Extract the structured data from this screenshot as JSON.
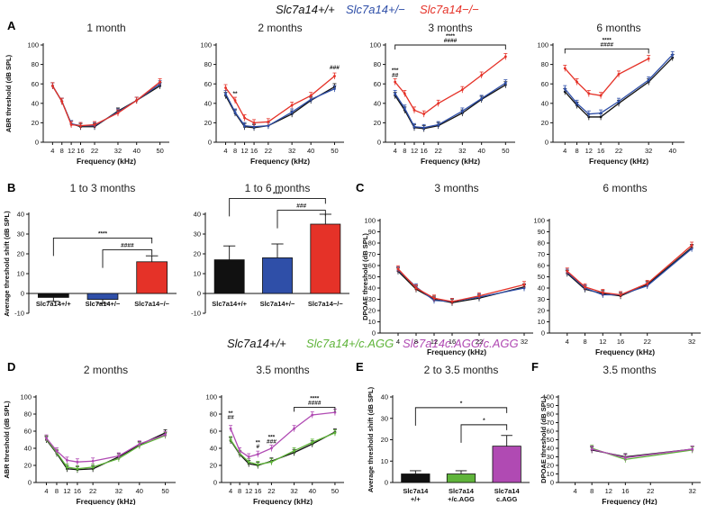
{
  "colors": {
    "black": "#111111",
    "blue": "#2f4fa8",
    "red": "#e53228",
    "green": "#5fb43a",
    "purple": "#b04ab3",
    "grey": "#444444"
  },
  "legend_top": [
    {
      "label": "Slc7a14+/+",
      "color": "black"
    },
    {
      "label": "Slc7a14+/−",
      "color": "blue"
    },
    {
      "label": "Slc7a14−/−",
      "color": "red"
    }
  ],
  "legend_mid": [
    {
      "label": "Slc7a14+/+",
      "color": "black"
    },
    {
      "label": "Slc7a14+/c.AGG",
      "color": "green"
    },
    {
      "label": "Slc7a14c.AGG/c.AGG",
      "color": "purple"
    }
  ],
  "panel_labels": [
    "A",
    "B",
    "C",
    "D",
    "E",
    "F"
  ],
  "chart_data": [
    {
      "id": "A1",
      "type": "line",
      "panel": "A",
      "title": "1 month",
      "xlabel": "Frequency (kHz)",
      "ylabel": "ABR threshold (dB SPL)",
      "xlim": [
        0,
        54
      ],
      "ylim": [
        0,
        100
      ],
      "xticks": [
        4,
        8,
        12,
        16,
        22,
        32,
        40,
        50
      ],
      "yticks": [
        0,
        20,
        40,
        60,
        80,
        100
      ],
      "x": [
        4,
        8,
        12,
        16,
        22,
        32,
        40,
        50
      ],
      "series": [
        {
          "name": "Slc7a14+/+",
          "color": "black",
          "values": [
            58,
            42,
            19,
            16,
            16,
            32,
            43,
            58
          ]
        },
        {
          "name": "Slc7a14+/−",
          "color": "blue",
          "values": [
            58,
            42,
            19,
            17,
            17,
            31,
            43,
            60
          ]
        },
        {
          "name": "Slc7a14−/−",
          "color": "red",
          "values": [
            58,
            42,
            18,
            17,
            18,
            30,
            43,
            62
          ]
        }
      ],
      "annotations": []
    },
    {
      "id": "A2",
      "type": "line",
      "panel": "A",
      "title": "2 months",
      "xlabel": "Frequency (kHz)",
      "ylabel": "",
      "xlim": [
        0,
        54
      ],
      "ylim": [
        0,
        100
      ],
      "xticks": [
        4,
        8,
        12,
        16,
        22,
        32,
        40,
        50
      ],
      "yticks": [
        0,
        20,
        40,
        60,
        80,
        100
      ],
      "x": [
        4,
        8,
        12,
        16,
        22,
        32,
        40,
        50
      ],
      "series": [
        {
          "name": "Slc7a14+/+",
          "color": "black",
          "values": [
            48,
            30,
            16,
            15,
            17,
            29,
            43,
            57
          ]
        },
        {
          "name": "Slc7a14+/−",
          "color": "blue",
          "values": [
            50,
            31,
            17,
            16,
            17,
            31,
            44,
            55
          ]
        },
        {
          "name": "Slc7a14−/−",
          "color": "red",
          "values": [
            56,
            43,
            25,
            20,
            21,
            38,
            48,
            68
          ]
        }
      ],
      "annotations": [
        {
          "text": "**",
          "x": 8,
          "y": 48
        },
        {
          "text": "###",
          "x": 50,
          "y": 75
        }
      ]
    },
    {
      "id": "A3",
      "type": "line",
      "panel": "A",
      "title": "3 months",
      "xlabel": "Frequency (kHz)",
      "ylabel": "",
      "xlim": [
        0,
        54
      ],
      "ylim": [
        0,
        100
      ],
      "xticks": [
        4,
        8,
        12,
        16,
        22,
        32,
        40,
        50
      ],
      "yticks": [
        0,
        20,
        40,
        60,
        80,
        100
      ],
      "x": [
        4,
        8,
        12,
        16,
        22,
        32,
        40,
        50
      ],
      "series": [
        {
          "name": "Slc7a14+/+",
          "color": "black",
          "values": [
            48,
            33,
            15,
            14,
            17,
            30,
            44,
            59
          ]
        },
        {
          "name": "Slc7a14+/−",
          "color": "blue",
          "values": [
            50,
            35,
            16,
            15,
            18,
            32,
            45,
            61
          ]
        },
        {
          "name": "Slc7a14−/−",
          "color": "red",
          "values": [
            62,
            50,
            33,
            29,
            40,
            54,
            69,
            88
          ]
        }
      ],
      "annotations": [
        {
          "text": "***",
          "x": 4,
          "y": 72
        },
        {
          "text": "##",
          "x": 4,
          "y": 67
        }
      ],
      "bracket": {
        "x_from": 4,
        "x_to": 50,
        "y": 100,
        "labels": [
          "****",
          "####"
        ]
      }
    },
    {
      "id": "A4",
      "type": "line",
      "panel": "A",
      "title": "6 months",
      "xlabel": "Frequency (kHz)",
      "ylabel": "",
      "xlim": [
        0,
        44
      ],
      "ylim": [
        0,
        100
      ],
      "xticks": [
        4,
        8,
        12,
        16,
        22,
        32,
        40
      ],
      "yticks": [
        0,
        20,
        40,
        60,
        80,
        100
      ],
      "x": [
        4,
        8,
        12,
        16,
        22,
        32,
        40
      ],
      "series": [
        {
          "name": "Slc7a14+/+",
          "color": "black",
          "values": [
            52,
            38,
            26,
            26,
            40,
            62,
            87
          ]
        },
        {
          "name": "Slc7a14+/−",
          "color": "blue",
          "values": [
            55,
            40,
            29,
            30,
            42,
            64,
            90
          ]
        },
        {
          "name": "Slc7a14−/−",
          "color": "red",
          "values": [
            76,
            62,
            50,
            48,
            70,
            86,
            null
          ]
        }
      ],
      "annotations": [],
      "bracket": {
        "x_from": 4,
        "x_to": 32,
        "y": 96,
        "labels": [
          "****",
          "####"
        ]
      }
    },
    {
      "id": "B1",
      "type": "bar",
      "panel": "B",
      "title": "1 to 3 months",
      "xlabel": "",
      "ylabel": "Average threshold shift (dB SPL)",
      "ylim": [
        -10,
        40
      ],
      "yticks": [
        -10,
        0,
        10,
        20,
        30,
        40
      ],
      "categories": [
        "Slc7a14+/+",
        "Slc7a14+/−",
        "Slc7a14−/−"
      ],
      "values": [
        -2,
        -3,
        16
      ],
      "errors": [
        2,
        2,
        3
      ],
      "colors": [
        "black",
        "blue",
        "red"
      ],
      "brackets": [
        {
          "from": 0,
          "to": 2,
          "label": "****",
          "y": 28
        },
        {
          "from": 1,
          "to": 2,
          "label": "####",
          "y": 22
        }
      ]
    },
    {
      "id": "B2",
      "type": "bar",
      "panel": "B",
      "title": "1 to 6 months",
      "xlabel": "",
      "ylabel": "",
      "ylim": [
        -10,
        40
      ],
      "yticks": [
        -10,
        0,
        10,
        20,
        30,
        40
      ],
      "categories": [
        "Slc7a14+/+",
        "Slc7a14+/−",
        "Slc7a14−/−"
      ],
      "values": [
        17,
        18,
        35
      ],
      "errors": [
        7,
        7,
        5
      ],
      "colors": [
        "black",
        "blue",
        "red"
      ],
      "brackets": [
        {
          "from": 0,
          "to": 2,
          "label": "****",
          "y": 48
        },
        {
          "from": 1,
          "to": 2,
          "label": "###",
          "y": 42
        }
      ]
    },
    {
      "id": "C1",
      "type": "line",
      "panel": "C",
      "title": "3 months",
      "xlabel": "Frequency (kHz)",
      "ylabel": "DPOAE threshold (dB SPL)",
      "xlim": [
        0,
        34
      ],
      "ylim": [
        0,
        100
      ],
      "xticks": [
        4,
        8,
        12,
        16,
        22,
        32
      ],
      "yticks": [
        0,
        10,
        20,
        30,
        40,
        50,
        60,
        70,
        80,
        90,
        100
      ],
      "x": [
        4,
        8,
        12,
        16,
        22,
        32
      ],
      "series": [
        {
          "name": "Slc7a14+/+",
          "color": "black",
          "values": [
            55,
            39,
            30,
            27,
            31,
            41
          ]
        },
        {
          "name": "Slc7a14+/−",
          "color": "blue",
          "values": [
            56,
            41,
            29,
            28,
            32,
            40
          ]
        },
        {
          "name": "Slc7a14−/−",
          "color": "red",
          "values": [
            57,
            40,
            31,
            28,
            33,
            43
          ]
        }
      ]
    },
    {
      "id": "C2",
      "type": "line",
      "panel": "C",
      "title": "6 months",
      "xlabel": "Frequency (kHz)",
      "ylabel": "",
      "xlim": [
        0,
        34
      ],
      "ylim": [
        0,
        100
      ],
      "xticks": [
        4,
        8,
        12,
        16,
        22,
        32
      ],
      "yticks": [
        0,
        10,
        20,
        30,
        40,
        50,
        60,
        70,
        80,
        90,
        100
      ],
      "x": [
        4,
        8,
        12,
        16,
        22,
        32
      ],
      "series": [
        {
          "name": "Slc7a14+/+",
          "color": "black",
          "values": [
            53,
            39,
            35,
            33,
            43,
            76
          ]
        },
        {
          "name": "Slc7a14+/−",
          "color": "blue",
          "values": [
            54,
            40,
            34,
            34,
            42,
            75
          ]
        },
        {
          "name": "Slc7a14−/−",
          "color": "red",
          "values": [
            55,
            41,
            36,
            34,
            44,
            78
          ]
        }
      ]
    },
    {
      "id": "D1",
      "type": "line",
      "panel": "D",
      "title": "2 months",
      "xlabel": "Frequency (kHz)",
      "ylabel": "ABR threshold (dB SPL)",
      "xlim": [
        0,
        54
      ],
      "ylim": [
        0,
        100
      ],
      "xticks": [
        4,
        8,
        12,
        16,
        22,
        32,
        40,
        50
      ],
      "yticks": [
        0,
        20,
        40,
        60,
        80,
        100
      ],
      "x": [
        4,
        8,
        12,
        16,
        22,
        32,
        40,
        50
      ],
      "series": [
        {
          "name": "Slc7a14+/+",
          "color": "black",
          "values": [
            50,
            34,
            16,
            15,
            16,
            30,
            44,
            58
          ]
        },
        {
          "name": "Slc7a14+/c.AGG",
          "color": "green",
          "values": [
            51,
            35,
            18,
            16,
            18,
            28,
            43,
            55
          ]
        },
        {
          "name": "Slc7a14c.AGG/c.AGG",
          "color": "purple",
          "values": [
            52,
            37,
            26,
            24,
            25,
            31,
            45,
            56
          ]
        }
      ],
      "annotations": []
    },
    {
      "id": "D2",
      "type": "line",
      "panel": "D",
      "title": "3.5 months",
      "xlabel": "Frequency (kHz)",
      "ylabel": "",
      "xlim": [
        0,
        54
      ],
      "ylim": [
        0,
        100
      ],
      "xticks": [
        4,
        8,
        12,
        16,
        22,
        32,
        40,
        50
      ],
      "yticks": [
        0,
        20,
        40,
        60,
        80,
        100
      ],
      "x": [
        4,
        8,
        12,
        16,
        22,
        32,
        40,
        50
      ],
      "series": [
        {
          "name": "Slc7a14+/+",
          "color": "black",
          "values": [
            49,
            33,
            22,
            20,
            25,
            35,
            45,
            59
          ]
        },
        {
          "name": "Slc7a14+/c.AGG",
          "color": "green",
          "values": [
            50,
            34,
            24,
            21,
            24,
            37,
            47,
            58
          ]
        },
        {
          "name": "Slc7a14c.AGG/c.AGG",
          "color": "purple",
          "values": [
            63,
            37,
            30,
            33,
            40,
            63,
            79,
            82
          ]
        }
      ],
      "annotations": [
        {
          "text": "**",
          "x": 4,
          "y": 79
        },
        {
          "text": "##",
          "x": 4,
          "y": 74
        },
        {
          "text": "**",
          "x": 16,
          "y": 45
        },
        {
          "text": "#",
          "x": 16,
          "y": 40
        },
        {
          "text": "***",
          "x": 22,
          "y": 51
        },
        {
          "text": "###",
          "x": 22,
          "y": 46
        }
      ],
      "bracket": {
        "x_from": 32,
        "x_to": 50,
        "y": 88,
        "labels": [
          "****",
          "####"
        ]
      }
    },
    {
      "id": "E",
      "type": "bar",
      "panel": "E",
      "title": "2 to 3.5 months",
      "xlabel": "",
      "ylabel": "Average threshold shift (dB SPL)",
      "ylim": [
        0,
        40
      ],
      "yticks": [
        0,
        10,
        20,
        30,
        40
      ],
      "categories": [
        "Slc7a14 +/+",
        "Slc7a14 +/c.AGG",
        "Slc7a14 c.AGG"
      ],
      "values": [
        4,
        4,
        17
      ],
      "errors": [
        1.5,
        1.5,
        5
      ],
      "colors": [
        "black",
        "green",
        "purple"
      ],
      "brackets": [
        {
          "from": 0,
          "to": 2,
          "label": "*",
          "y": 35
        },
        {
          "from": 1,
          "to": 2,
          "label": "*",
          "y": 27
        }
      ]
    },
    {
      "id": "F",
      "type": "line",
      "panel": "F",
      "title": "3.5 months",
      "xlabel": "Frequency (Hz)",
      "ylabel": "DPOAE threshold (dB SPL)",
      "xlim": [
        0,
        34
      ],
      "ylim": [
        0,
        100
      ],
      "xticks": [
        4,
        8,
        12,
        16,
        22,
        32
      ],
      "yticks": [
        0,
        10,
        20,
        30,
        40,
        50,
        60,
        70,
        80,
        90,
        100
      ],
      "x": [
        8,
        16,
        32
      ],
      "series": [
        {
          "name": "Slc7a14+/+",
          "color": "black",
          "values": [
            38,
            30,
            39
          ]
        },
        {
          "name": "Slc7a14+/c.AGG",
          "color": "green",
          "values": [
            40,
            27,
            38
          ]
        },
        {
          "name": "Slc7a14c.AGG/c.AGG",
          "color": "purple",
          "values": [
            39,
            29,
            39
          ]
        }
      ]
    }
  ]
}
